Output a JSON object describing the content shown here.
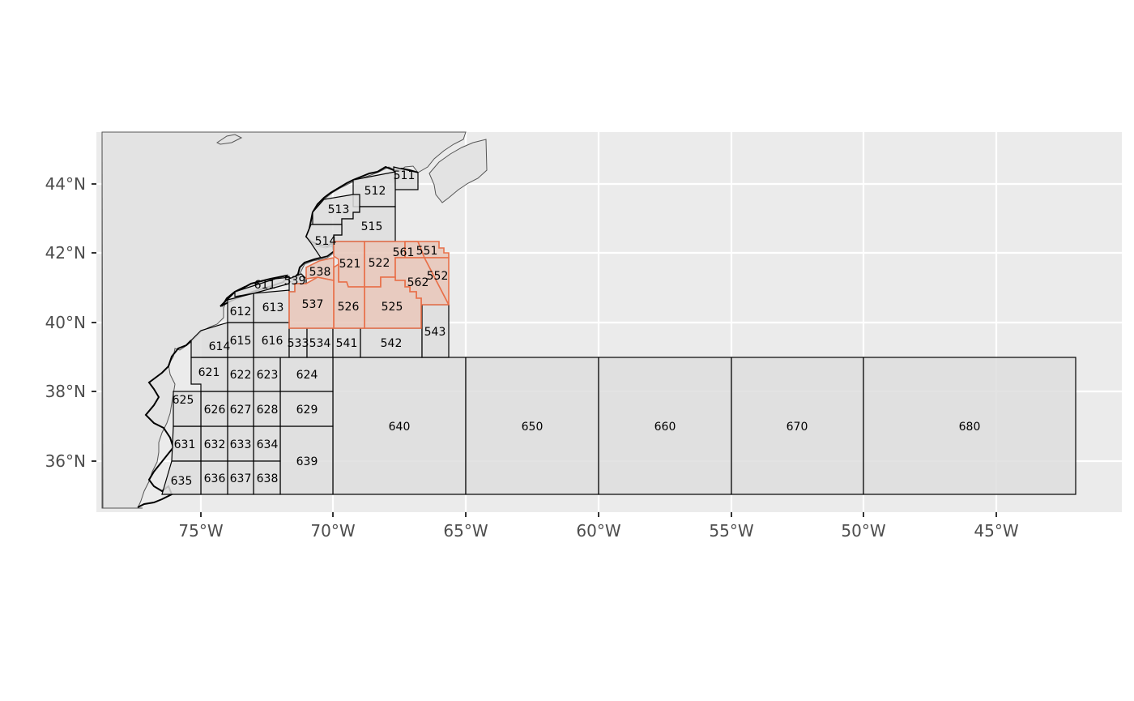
{
  "map": {
    "panel_background": "#ebebeb",
    "grid_color": "#ffffff",
    "land_fill": "#e3e3e3",
    "land_outline": "#000000",
    "area_fill": "#dedede",
    "area_outline": "#000000",
    "highlight_fill": "#e8c5b8",
    "highlight_outline": "#e8704a",
    "x_ticks": [
      "75°W",
      "70°W",
      "65°W",
      "60°W",
      "55°W",
      "50°W",
      "45°W"
    ],
    "y_ticks": [
      "44°N",
      "42°N",
      "40°N",
      "38°N",
      "36°N"
    ],
    "areas": [
      {
        "id": "511",
        "label": "511"
      },
      {
        "id": "512",
        "label": "512"
      },
      {
        "id": "513",
        "label": "513"
      },
      {
        "id": "514",
        "label": "514"
      },
      {
        "id": "515",
        "label": "515"
      },
      {
        "id": "521",
        "label": "521",
        "highlight": true
      },
      {
        "id": "522",
        "label": "522",
        "highlight": true
      },
      {
        "id": "525",
        "label": "525",
        "highlight": true
      },
      {
        "id": "526",
        "label": "526",
        "highlight": true
      },
      {
        "id": "533",
        "label": "533"
      },
      {
        "id": "534",
        "label": "534"
      },
      {
        "id": "537",
        "label": "537",
        "highlight": true
      },
      {
        "id": "538",
        "label": "538",
        "highlight": true
      },
      {
        "id": "539",
        "label": "539"
      },
      {
        "id": "541",
        "label": "541"
      },
      {
        "id": "542",
        "label": "542"
      },
      {
        "id": "543",
        "label": "543"
      },
      {
        "id": "551",
        "label": "551",
        "highlight": true
      },
      {
        "id": "552",
        "label": "552",
        "highlight": true
      },
      {
        "id": "561",
        "label": "561",
        "highlight": true
      },
      {
        "id": "562",
        "label": "562",
        "highlight": true
      },
      {
        "id": "611",
        "label": "611"
      },
      {
        "id": "612",
        "label": "612"
      },
      {
        "id": "613",
        "label": "613"
      },
      {
        "id": "614",
        "label": "614"
      },
      {
        "id": "615",
        "label": "615"
      },
      {
        "id": "616",
        "label": "616"
      },
      {
        "id": "621",
        "label": "621"
      },
      {
        "id": "622",
        "label": "622"
      },
      {
        "id": "623",
        "label": "623"
      },
      {
        "id": "624",
        "label": "624"
      },
      {
        "id": "625",
        "label": "625"
      },
      {
        "id": "626",
        "label": "626"
      },
      {
        "id": "627",
        "label": "627"
      },
      {
        "id": "628",
        "label": "628"
      },
      {
        "id": "629",
        "label": "629"
      },
      {
        "id": "631",
        "label": "631"
      },
      {
        "id": "632",
        "label": "632"
      },
      {
        "id": "633",
        "label": "633"
      },
      {
        "id": "634",
        "label": "634"
      },
      {
        "id": "635",
        "label": "635"
      },
      {
        "id": "636",
        "label": "636"
      },
      {
        "id": "637",
        "label": "637"
      },
      {
        "id": "638",
        "label": "638"
      },
      {
        "id": "639",
        "label": "639"
      },
      {
        "id": "640",
        "label": "640"
      },
      {
        "id": "650",
        "label": "650"
      },
      {
        "id": "660",
        "label": "660"
      },
      {
        "id": "670",
        "label": "670"
      },
      {
        "id": "680",
        "label": "680"
      }
    ]
  }
}
